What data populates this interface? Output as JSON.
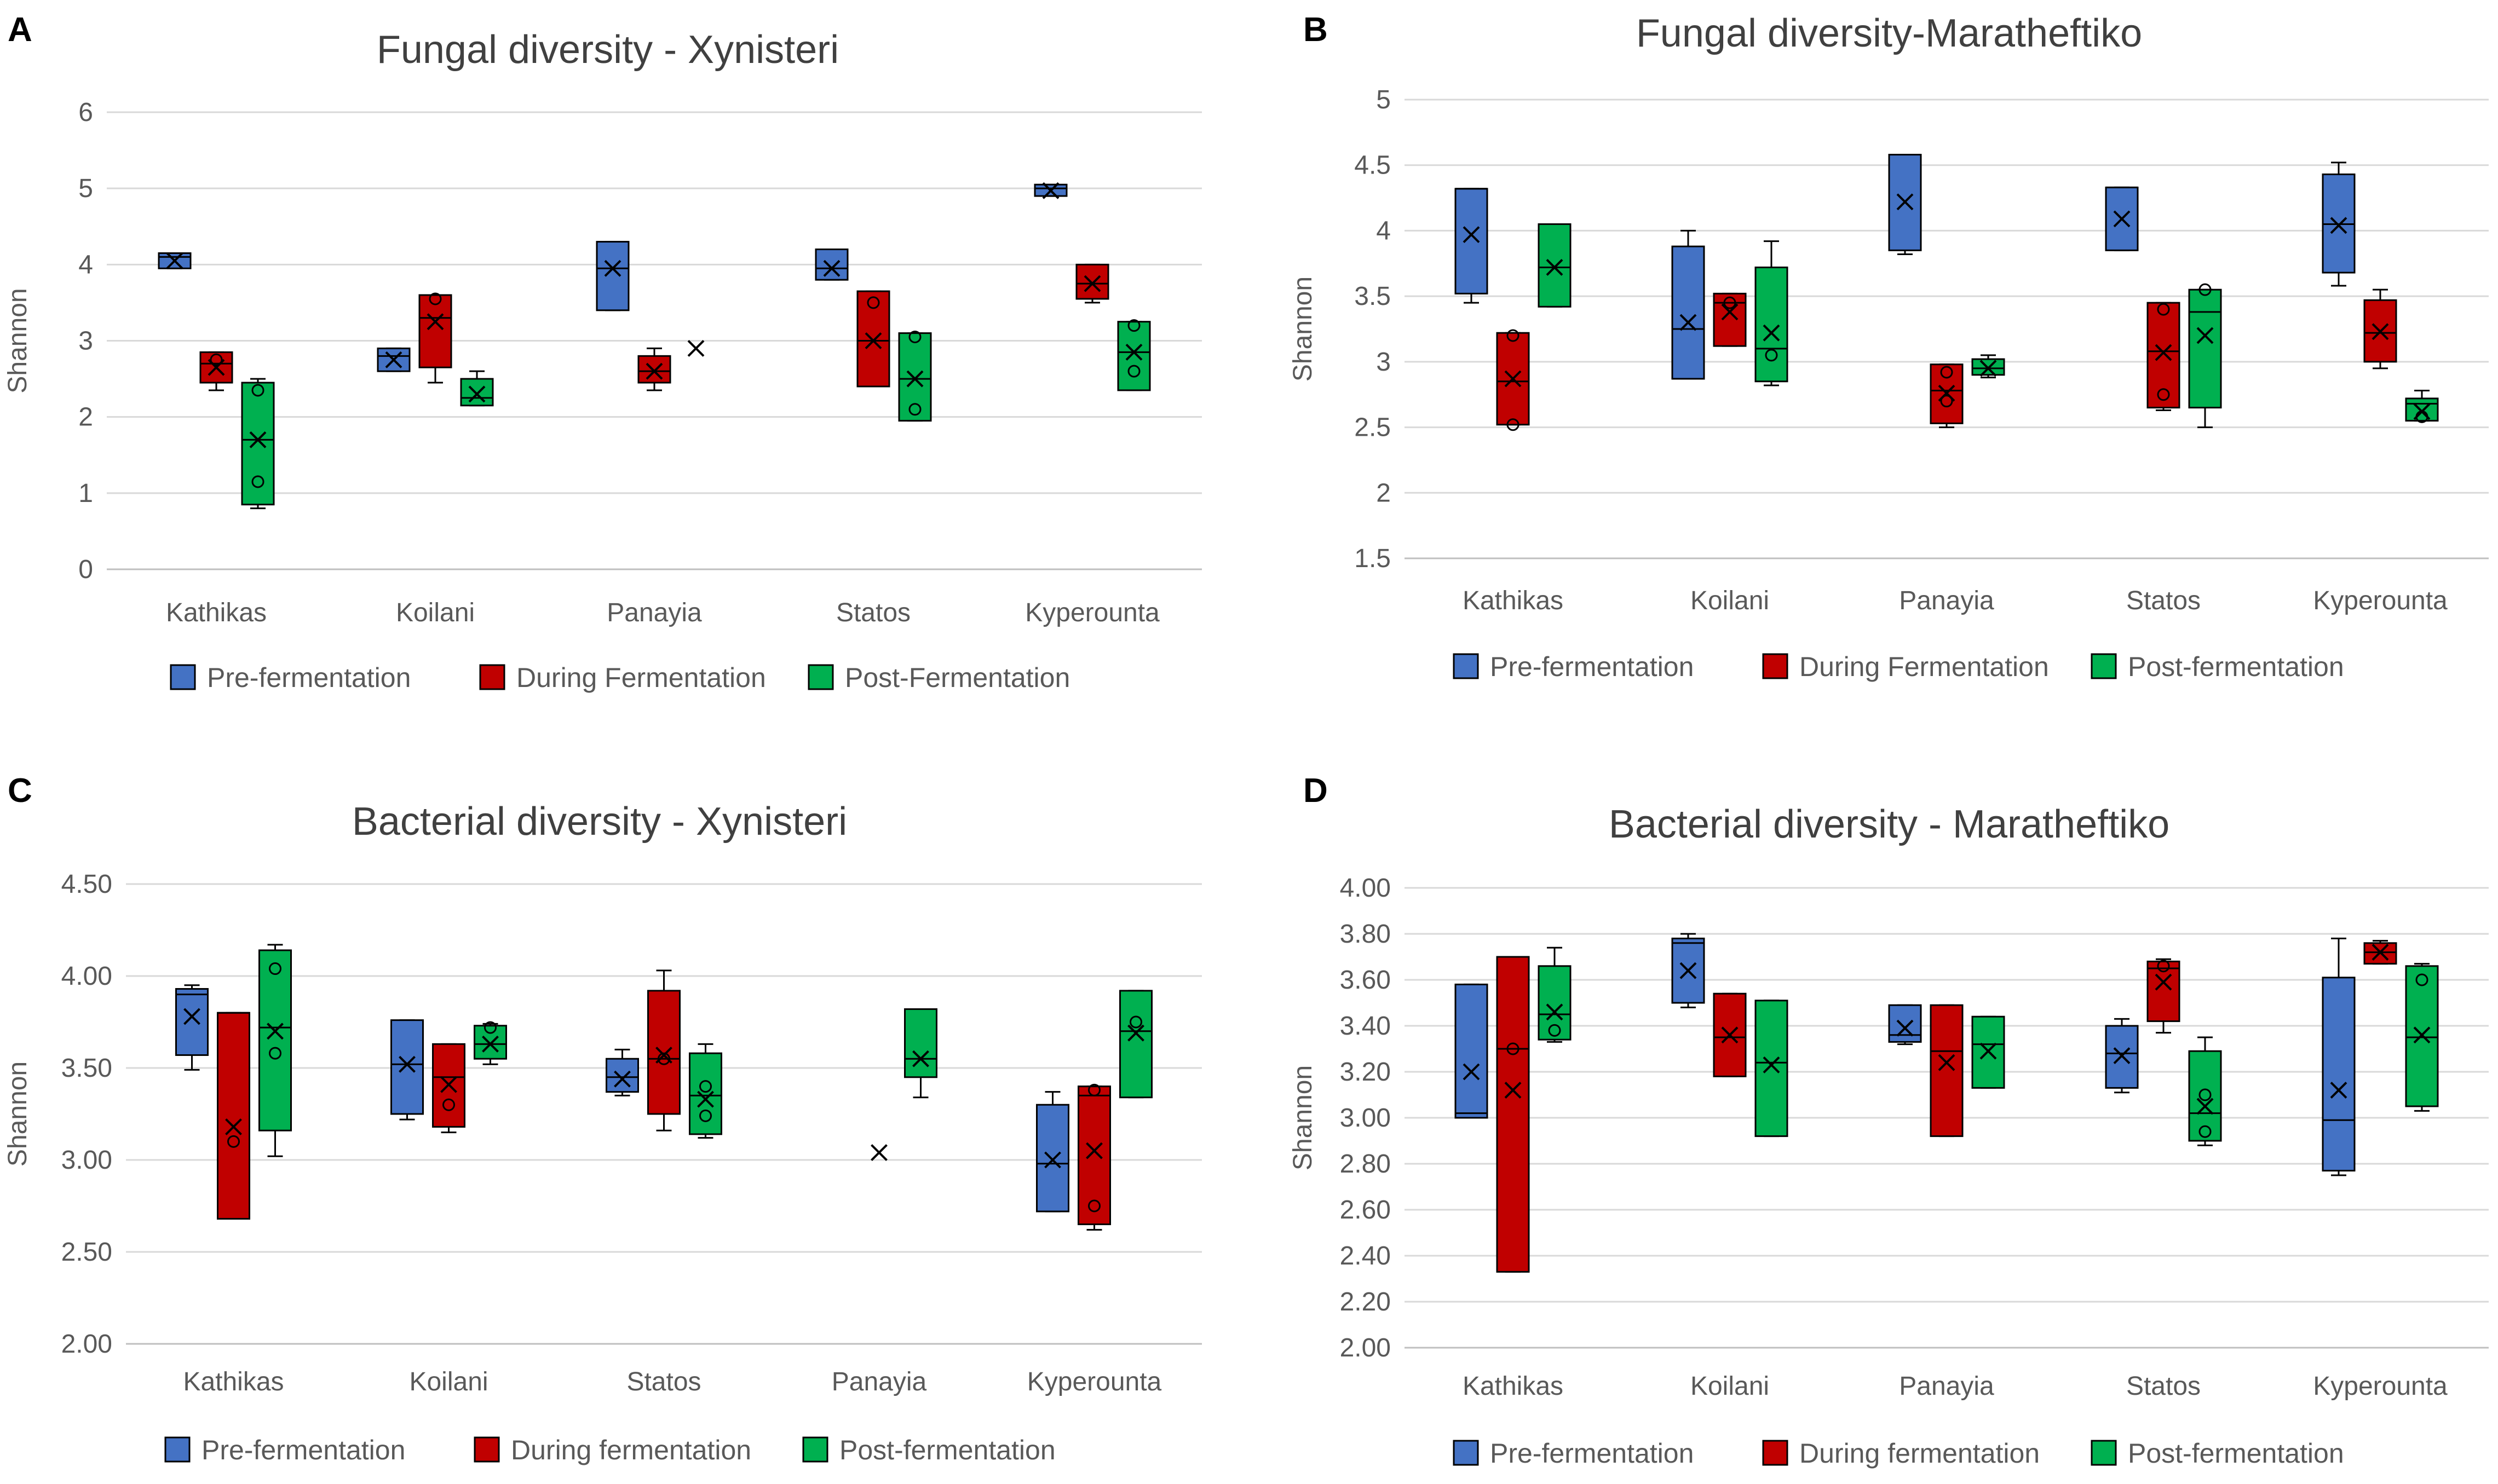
{
  "colors": {
    "pre": "#4472C4",
    "during": "#C00000",
    "post": "#00B050",
    "grid": "#D9D9D9",
    "axis": "#BFBFBF",
    "text": "#595959",
    "title": "#404040"
  },
  "chart_data": [
    {
      "panel": "A",
      "type": "box",
      "title": "Fungal diversity - Xynisteri",
      "ylabel": "Shannon",
      "ylim": [
        0,
        6
      ],
      "yticks": [
        "0",
        "1",
        "2",
        "3",
        "4",
        "5",
        "6"
      ],
      "categories": [
        "Kathikas",
        "Koilani",
        "Panayia",
        "Statos",
        "Kyperounta"
      ],
      "legend": [
        "Pre-fermentation",
        "During Fermentation",
        "Post-Fermentation"
      ],
      "series": [
        {
          "name": "Pre-fermentation",
          "boxes": [
            {
              "min": 3.95,
              "q1": 3.95,
              "median": 4.1,
              "q3": 4.15,
              "max": 4.15,
              "mean": 4.05,
              "points": []
            },
            {
              "min": 2.6,
              "q1": 2.6,
              "median": 2.8,
              "q3": 2.9,
              "max": 2.9,
              "mean": 2.75,
              "points": []
            },
            {
              "min": 3.4,
              "q1": 3.4,
              "median": 3.95,
              "q3": 4.3,
              "max": 4.3,
              "mean": 3.95,
              "points": []
            },
            {
              "min": 3.8,
              "q1": 3.8,
              "median": 3.95,
              "q3": 4.2,
              "max": 4.2,
              "mean": 3.95,
              "points": []
            },
            {
              "min": 4.9,
              "q1": 4.9,
              "median": 5.0,
              "q3": 5.05,
              "max": 5.05,
              "mean": 4.97,
              "points": []
            }
          ]
        },
        {
          "name": "During Fermentation",
          "boxes": [
            {
              "min": 2.35,
              "q1": 2.45,
              "median": 2.7,
              "q3": 2.85,
              "max": 2.85,
              "mean": 2.65,
              "points": [
                2.75
              ]
            },
            {
              "min": 2.45,
              "q1": 2.65,
              "median": 3.3,
              "q3": 3.6,
              "max": 3.6,
              "mean": 3.25,
              "points": [
                3.55
              ]
            },
            {
              "min": 2.35,
              "q1": 2.45,
              "median": 2.6,
              "q3": 2.8,
              "max": 2.9,
              "mean": 2.6,
              "points": []
            },
            {
              "min": 2.4,
              "q1": 2.4,
              "median": 3.0,
              "q3": 3.65,
              "max": 3.65,
              "mean": 3.0,
              "points": [
                3.5
              ]
            },
            {
              "min": 3.5,
              "q1": 3.55,
              "median": 3.75,
              "q3": 4.0,
              "max": 4.0,
              "mean": 3.75,
              "points": []
            }
          ]
        },
        {
          "name": "Post-Fermentation",
          "boxes": [
            {
              "min": 0.8,
              "q1": 0.85,
              "median": 1.7,
              "q3": 2.45,
              "max": 2.5,
              "mean": 1.7,
              "points": [
                1.15,
                2.35
              ]
            },
            {
              "min": 2.15,
              "q1": 2.15,
              "median": 2.25,
              "q3": 2.5,
              "max": 2.6,
              "mean": 2.3,
              "points": []
            },
            {
              "min": 2.9,
              "q1": 2.9,
              "median": 2.9,
              "q3": 2.9,
              "max": 2.9,
              "mean": 2.9,
              "points": []
            },
            {
              "min": 1.95,
              "q1": 1.95,
              "median": 2.5,
              "q3": 3.1,
              "max": 3.1,
              "mean": 2.5,
              "points": [
                2.1,
                3.05
              ]
            },
            {
              "min": 2.35,
              "q1": 2.35,
              "median": 2.85,
              "q3": 3.25,
              "max": 3.25,
              "mean": 2.85,
              "points": [
                2.6,
                3.2
              ]
            }
          ]
        }
      ]
    },
    {
      "panel": "B",
      "type": "box",
      "title": "Fungal diversity-Maratheftiko",
      "ylabel": "Shannon",
      "ylim": [
        1.5,
        5
      ],
      "yticks": [
        "1.5",
        "2",
        "2.5",
        "3",
        "3.5",
        "4",
        "4.5",
        "5"
      ],
      "categories": [
        "Kathikas",
        "Koilani",
        "Panayia",
        "Statos",
        "Kyperounta"
      ],
      "legend": [
        "Pre-fermentation",
        "During Fermentation",
        "Post-fermentation"
      ],
      "series": [
        {
          "name": "Pre-fermentation",
          "boxes": [
            {
              "min": 3.45,
              "q1": 3.52,
              "median": 4.32,
              "q3": 4.32,
              "max": 4.32,
              "mean": 3.97,
              "points": []
            },
            {
              "min": 2.87,
              "q1": 2.87,
              "median": 3.25,
              "q3": 3.88,
              "max": 4.0,
              "mean": 3.3,
              "points": []
            },
            {
              "min": 3.82,
              "q1": 3.85,
              "median": 4.58,
              "q3": 4.58,
              "max": 4.58,
              "mean": 4.22,
              "points": []
            },
            {
              "min": 3.85,
              "q1": 3.85,
              "median": 4.33,
              "q3": 4.33,
              "max": 4.33,
              "mean": 4.09,
              "points": []
            },
            {
              "min": 3.58,
              "q1": 3.68,
              "median": 4.05,
              "q3": 4.43,
              "max": 4.52,
              "mean": 4.04,
              "points": []
            }
          ]
        },
        {
          "name": "During Fermentation",
          "boxes": [
            {
              "min": 2.52,
              "q1": 2.52,
              "median": 2.85,
              "q3": 3.22,
              "max": 3.22,
              "mean": 2.87,
              "points": [
                3.2,
                2.52
              ]
            },
            {
              "min": 3.12,
              "q1": 3.12,
              "median": 3.45,
              "q3": 3.52,
              "max": 3.52,
              "mean": 3.38,
              "points": [
                3.45
              ]
            },
            {
              "min": 2.5,
              "q1": 2.53,
              "median": 2.78,
              "q3": 2.98,
              "max": 2.98,
              "mean": 2.76,
              "points": [
                2.92,
                2.7
              ]
            },
            {
              "min": 2.63,
              "q1": 2.65,
              "median": 3.08,
              "q3": 3.45,
              "max": 3.45,
              "mean": 3.07,
              "points": [
                3.4,
                2.75
              ]
            },
            {
              "min": 2.95,
              "q1": 3.0,
              "median": 3.22,
              "q3": 3.47,
              "max": 3.55,
              "mean": 3.23,
              "points": []
            }
          ]
        },
        {
          "name": "Post-fermentation",
          "boxes": [
            {
              "min": 3.42,
              "q1": 3.42,
              "median": 3.72,
              "q3": 4.05,
              "max": 4.05,
              "mean": 3.72,
              "points": []
            },
            {
              "min": 2.82,
              "q1": 2.85,
              "median": 3.1,
              "q3": 3.72,
              "max": 3.92,
              "mean": 3.22,
              "points": [
                3.05
              ]
            },
            {
              "min": 2.88,
              "q1": 2.9,
              "median": 2.95,
              "q3": 3.02,
              "max": 3.05,
              "mean": 2.95,
              "points": []
            },
            {
              "min": 2.5,
              "q1": 2.65,
              "median": 3.38,
              "q3": 3.55,
              "max": 3.55,
              "mean": 3.2,
              "points": [
                3.55
              ]
            },
            {
              "min": 2.55,
              "q1": 2.55,
              "median": 2.68,
              "q3": 2.72,
              "max": 2.78,
              "mean": 2.62,
              "points": [
                2.58
              ]
            }
          ]
        }
      ]
    },
    {
      "panel": "C",
      "type": "box",
      "title": "Bacterial diversity - Xynisteri",
      "ylabel": "Shannon",
      "ylim": [
        2.0,
        4.5
      ],
      "yticks": [
        "2.00",
        "2.50",
        "3.00",
        "3.50",
        "4.00",
        "4.50"
      ],
      "categories": [
        "Kathikas",
        "Koilani",
        "Statos",
        "Panayia",
        "Kyperounta"
      ],
      "legend": [
        "Pre-fermentation",
        "During fermentation",
        "Post-fermentation"
      ],
      "series": [
        {
          "name": "Pre-fermentation",
          "boxes": [
            {
              "min": 3.49,
              "q1": 3.57,
              "median": 3.9,
              "q3": 3.93,
              "max": 3.95,
              "mean": 3.78,
              "points": []
            },
            {
              "min": 3.22,
              "q1": 3.25,
              "median": 3.52,
              "q3": 3.76,
              "max": 3.76,
              "mean": 3.52,
              "points": []
            },
            {
              "min": 3.35,
              "q1": 3.37,
              "median": 3.45,
              "q3": 3.55,
              "max": 3.6,
              "mean": 3.44,
              "points": []
            },
            null,
            {
              "min": 2.72,
              "q1": 2.72,
              "median": 2.98,
              "q3": 3.3,
              "max": 3.37,
              "mean": 3.0,
              "points": []
            }
          ]
        },
        {
          "name": "During fermentation",
          "boxes": [
            {
              "min": 2.68,
              "q1": 2.68,
              "median": 3.8,
              "q3": 3.8,
              "max": 3.8,
              "mean": 3.18,
              "points": [
                3.1
              ]
            },
            {
              "min": 3.15,
              "q1": 3.18,
              "median": 3.45,
              "q3": 3.63,
              "max": 3.63,
              "mean": 3.41,
              "points": [
                3.3
              ]
            },
            {
              "min": 3.16,
              "q1": 3.25,
              "median": 3.55,
              "q3": 3.92,
              "max": 4.03,
              "mean": 3.57,
              "points": [
                3.55
              ]
            },
            {
              "min": 3.04,
              "q1": 3.04,
              "median": 3.04,
              "q3": 3.04,
              "max": 3.04,
              "mean": 3.04,
              "points": []
            },
            {
              "min": 2.62,
              "q1": 2.65,
              "median": 3.35,
              "q3": 3.4,
              "max": 3.4,
              "mean": 3.05,
              "points": [
                2.75,
                3.38
              ]
            }
          ]
        },
        {
          "name": "Post-fermentation",
          "boxes": [
            {
              "min": 3.02,
              "q1": 3.16,
              "median": 3.72,
              "q3": 4.14,
              "max": 4.17,
              "mean": 3.7,
              "points": [
                3.58,
                4.04
              ]
            },
            {
              "min": 3.52,
              "q1": 3.55,
              "median": 3.63,
              "q3": 3.73,
              "max": 3.74,
              "mean": 3.63,
              "points": [
                3.72
              ]
            },
            {
              "min": 3.12,
              "q1": 3.14,
              "median": 3.35,
              "q3": 3.58,
              "max": 3.63,
              "mean": 3.33,
              "points": [
                3.24,
                3.4
              ]
            },
            {
              "min": 3.34,
              "q1": 3.45,
              "median": 3.55,
              "q3": 3.82,
              "max": 3.82,
              "mean": 3.55,
              "points": []
            },
            {
              "min": 3.34,
              "q1": 3.34,
              "median": 3.7,
              "q3": 3.92,
              "max": 3.92,
              "mean": 3.69,
              "points": [
                3.75
              ]
            }
          ]
        }
      ]
    },
    {
      "panel": "D",
      "type": "box",
      "title": "Bacterial diversity - Maratheftiko",
      "ylabel": "Shannon",
      "ylim": [
        2.0,
        4.0
      ],
      "yticks": [
        "2.00",
        "2.20",
        "2.40",
        "2.60",
        "2.80",
        "3.00",
        "3.20",
        "3.40",
        "3.60",
        "3.80",
        "4.00"
      ],
      "categories": [
        "Kathikas",
        "Koilani",
        "Panayia",
        "Statos",
        "Kyperounta"
      ],
      "legend": [
        "Pre-fermentation",
        "During fermentation",
        "Post-fermentation"
      ],
      "series": [
        {
          "name": "Pre-fermentation",
          "boxes": [
            {
              "min": 3.0,
              "q1": 3.0,
              "median": 3.02,
              "q3": 3.58,
              "max": 3.58,
              "mean": 3.2,
              "points": []
            },
            {
              "min": 3.48,
              "q1": 3.5,
              "median": 3.76,
              "q3": 3.78,
              "max": 3.8,
              "mean": 3.64,
              "points": []
            },
            {
              "min": 3.32,
              "q1": 3.33,
              "median": 3.36,
              "q3": 3.49,
              "max": 3.49,
              "mean": 3.39,
              "points": []
            },
            {
              "min": 3.11,
              "q1": 3.13,
              "median": 3.28,
              "q3": 3.4,
              "max": 3.43,
              "mean": 3.27,
              "points": []
            },
            {
              "min": 2.75,
              "q1": 2.77,
              "median": 2.99,
              "q3": 3.61,
              "max": 3.78,
              "mean": 3.12,
              "points": []
            }
          ]
        },
        {
          "name": "During fermentation",
          "boxes": [
            {
              "min": 2.33,
              "q1": 2.33,
              "median": 3.3,
              "q3": 3.7,
              "max": 3.7,
              "mean": 3.12,
              "points": [
                3.3
              ]
            },
            {
              "min": 3.18,
              "q1": 3.18,
              "median": 3.35,
              "q3": 3.54,
              "max": 3.54,
              "mean": 3.36,
              "points": []
            },
            {
              "min": 2.92,
              "q1": 2.92,
              "median": 3.29,
              "q3": 3.49,
              "max": 3.49,
              "mean": 3.24,
              "points": []
            },
            {
              "min": 3.37,
              "q1": 3.42,
              "median": 3.65,
              "q3": 3.68,
              "max": 3.69,
              "mean": 3.59,
              "points": [
                3.66
              ]
            },
            {
              "min": 3.67,
              "q1": 3.67,
              "median": 3.72,
              "q3": 3.76,
              "max": 3.77,
              "mean": 3.72,
              "points": []
            }
          ]
        },
        {
          "name": "Post-fermentation",
          "boxes": [
            {
              "min": 3.33,
              "q1": 3.34,
              "median": 3.45,
              "q3": 3.66,
              "max": 3.74,
              "mean": 3.46,
              "points": [
                3.38
              ]
            },
            {
              "min": 2.92,
              "q1": 2.92,
              "median": 3.24,
              "q3": 3.51,
              "max": 3.51,
              "mean": 3.23,
              "points": []
            },
            {
              "min": 3.13,
              "q1": 3.13,
              "median": 3.32,
              "q3": 3.44,
              "max": 3.44,
              "mean": 3.29,
              "points": []
            },
            {
              "min": 2.88,
              "q1": 2.9,
              "median": 3.02,
              "q3": 3.29,
              "max": 3.35,
              "mean": 3.05,
              "points": [
                2.94,
                3.1
              ]
            },
            {
              "min": 3.03,
              "q1": 3.05,
              "median": 3.35,
              "q3": 3.66,
              "max": 3.67,
              "mean": 3.36,
              "points": [
                3.6
              ]
            }
          ]
        }
      ]
    }
  ]
}
